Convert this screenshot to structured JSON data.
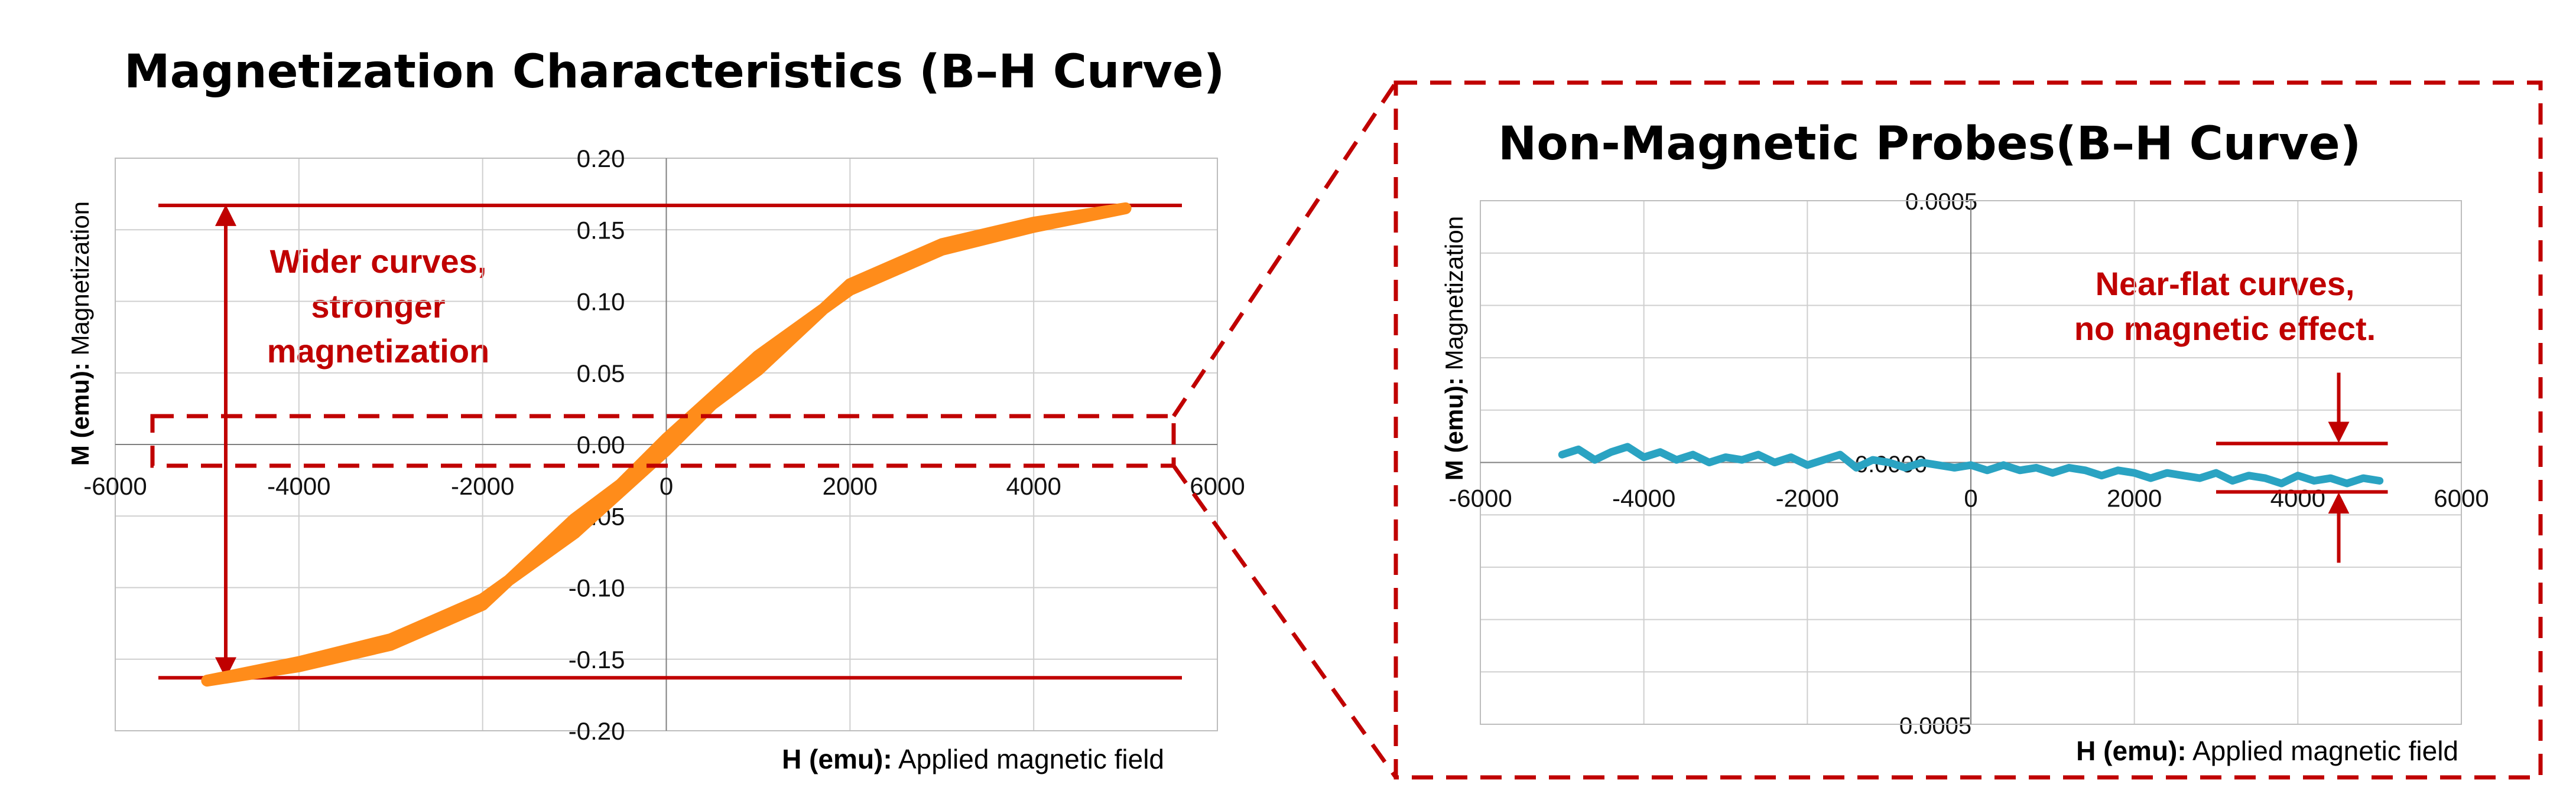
{
  "colors": {
    "accent_red": "#c00000",
    "ferro_series": "#ff8c1a",
    "nonmag_series": "#2aa3c2",
    "grid": "#cfcfcf"
  },
  "chart_data": [
    {
      "type": "line",
      "title": "Magnetization Characteristics (B–H Curve)",
      "xlabel_bold": "H (emu):",
      "xlabel_rest": " Applied magnetic field",
      "ylabel_bold": "M (emu):",
      "ylabel_rest": " Magnetization",
      "xlim": [
        -6000,
        6000
      ],
      "ylim": [
        -0.2,
        0.2
      ],
      "x_ticks": [
        "-6000",
        "-4000",
        "-2000",
        "0",
        "2000",
        "4000",
        "6000"
      ],
      "y_ticks": [
        "0.20",
        "0.15",
        "0.10",
        "0.05",
        "0.00",
        "-0.05",
        "-0.10",
        "-0.15",
        "-0.20"
      ],
      "grid": true,
      "series": [
        {
          "color": "#ff8c1a",
          "upper_branch": [
            [
              -5000,
              -0.165
            ],
            [
              -4000,
              -0.152
            ],
            [
              -3000,
              -0.136
            ],
            [
              -2000,
              -0.108
            ],
            [
              -1000,
              -0.062
            ],
            [
              0,
              -0.004
            ],
            [
              500,
              0.028
            ],
            [
              1000,
              0.052
            ],
            [
              2000,
              0.112
            ],
            [
              3000,
              0.14
            ],
            [
              4000,
              0.155
            ],
            [
              5000,
              0.165
            ]
          ],
          "lower_branch": [
            [
              5000,
              0.165
            ],
            [
              4000,
              0.152
            ],
            [
              3000,
              0.136
            ],
            [
              2000,
              0.108
            ],
            [
              1000,
              0.062
            ],
            [
              0,
              0.004
            ],
            [
              -500,
              -0.028
            ],
            [
              -1000,
              -0.052
            ],
            [
              -2000,
              -0.112
            ],
            [
              -3000,
              -0.14
            ],
            [
              -4000,
              -0.155
            ],
            [
              -5000,
              -0.165
            ]
          ]
        }
      ],
      "annotation": {
        "lines": [
          "Wider curves,",
          "stronger",
          "magnetization"
        ],
        "ref_upper": 0.167,
        "ref_lower": -0.163
      }
    },
    {
      "type": "line",
      "title": "Non-Magnetic Probes(B–H Curve)",
      "xlabel_bold": "H (emu):",
      "xlabel_rest": " Applied magnetic field",
      "ylabel_bold": "M (emu):",
      "ylabel_rest": " Magnetization",
      "xlim": [
        -6000,
        6000
      ],
      "ylim": [
        -0.0005,
        0.0005
      ],
      "x_ticks": [
        "-6000",
        "-4000",
        "-2000",
        "0",
        "2000",
        "4000",
        "6000"
      ],
      "y_tick_top": "0.0005",
      "y_tick_mid": "0.0000",
      "y_tick_bottom": "0.0005",
      "grid": true,
      "series": [
        {
          "color": "#2aa3c2",
          "points": [
            [
              -5000,
              1.5e-05
            ],
            [
              -4800,
              2.5e-05
            ],
            [
              -4600,
              5e-06
            ],
            [
              -4400,
              2e-05
            ],
            [
              -4200,
              3e-05
            ],
            [
              -4000,
              1e-05
            ],
            [
              -3800,
              2e-05
            ],
            [
              -3600,
              5e-06
            ],
            [
              -3400,
              1.5e-05
            ],
            [
              -3200,
              0.0
            ],
            [
              -3000,
              1e-05
            ],
            [
              -2800,
              5e-06
            ],
            [
              -2600,
              1.5e-05
            ],
            [
              -2400,
              0.0
            ],
            [
              -2200,
              1e-05
            ],
            [
              -2000,
              -5e-06
            ],
            [
              -1800,
              5e-06
            ],
            [
              -1600,
              1.5e-05
            ],
            [
              -1400,
              -1e-05
            ],
            [
              -1200,
              5e-06
            ],
            [
              -1000,
              0.0
            ],
            [
              -800,
              -1e-05
            ],
            [
              -600,
              0.0
            ],
            [
              -400,
              -5e-06
            ],
            [
              -200,
              -1e-05
            ],
            [
              0,
              -5e-06
            ],
            [
              200,
              -1.5e-05
            ],
            [
              400,
              -5e-06
            ],
            [
              600,
              -1.5e-05
            ],
            [
              800,
              -1e-05
            ],
            [
              1000,
              -2e-05
            ],
            [
              1200,
              -1e-05
            ],
            [
              1400,
              -1.5e-05
            ],
            [
              1600,
              -2.5e-05
            ],
            [
              1800,
              -1.5e-05
            ],
            [
              2000,
              -2e-05
            ],
            [
              2200,
              -3e-05
            ],
            [
              2400,
              -2e-05
            ],
            [
              2600,
              -2.5e-05
            ],
            [
              2800,
              -3e-05
            ],
            [
              3000,
              -2e-05
            ],
            [
              3200,
              -3.5e-05
            ],
            [
              3400,
              -2.5e-05
            ],
            [
              3600,
              -3e-05
            ],
            [
              3800,
              -4e-05
            ],
            [
              4000,
              -2.5e-05
            ],
            [
              4200,
              -3.5e-05
            ],
            [
              4400,
              -3e-05
            ],
            [
              4600,
              -4e-05
            ],
            [
              4800,
              -3e-05
            ],
            [
              5000,
              -3.5e-05
            ]
          ]
        }
      ],
      "annotation": {
        "lines": [
          "Near-flat curves,",
          "no magnetic effect."
        ],
        "ref_upper": 2.5e-05,
        "ref_lower": -4.5e-05,
        "x_from": 3000,
        "x_to": 5100
      }
    }
  ]
}
